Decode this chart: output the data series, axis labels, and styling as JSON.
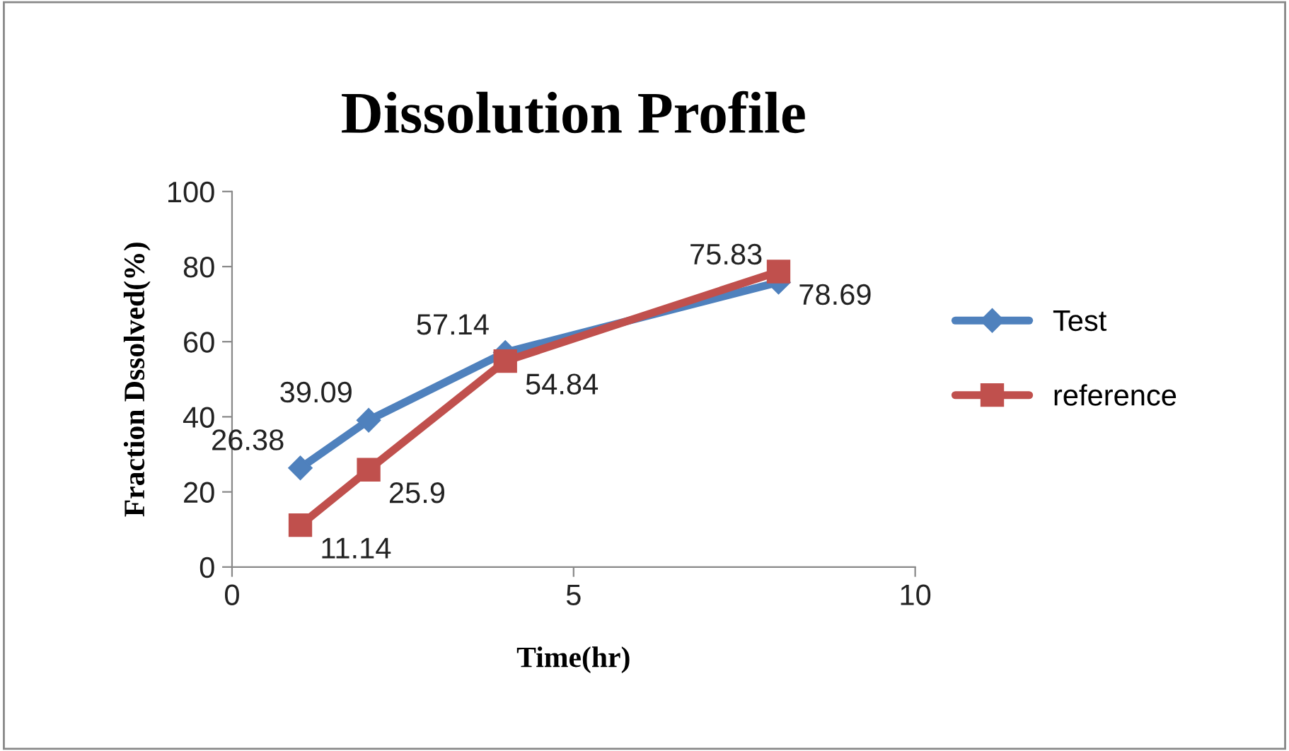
{
  "chart_data": {
    "type": "line",
    "title": "Dissolution Profile",
    "xlabel": "Time(hr)",
    "ylabel": "Fraction Dssolved(%)",
    "x": [
      1,
      2,
      4,
      8
    ],
    "series": [
      {
        "name": "Test",
        "color": "#4f81bd",
        "marker": "diamond",
        "values": [
          26.38,
          39.09,
          57.14,
          75.83
        ]
      },
      {
        "name": "reference",
        "color": "#c0504d",
        "marker": "square",
        "values": [
          11.14,
          25.9,
          54.84,
          78.69
        ]
      }
    ],
    "xlim": [
      0,
      10
    ],
    "xticks": [
      0,
      5,
      10
    ],
    "ylim": [
      0,
      100
    ],
    "yticks": [
      0,
      20,
      40,
      60,
      80,
      100
    ],
    "grid": false,
    "legend": "right",
    "data_labels": true,
    "line_style": "solid"
  }
}
